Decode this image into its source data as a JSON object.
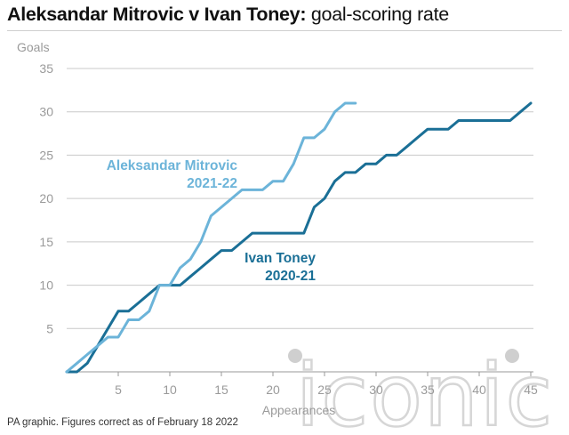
{
  "header": {
    "title_bold": "Aleksandar Mitrovic v Ivan Toney:",
    "title_rest": " goal-scoring rate"
  },
  "footer": {
    "source": "PA graphic. Figures correct as of February 18 2022"
  },
  "watermark": {
    "text": "iconic"
  },
  "colors": {
    "mitrovic": "#6cb4d9",
    "toney": "#1a6f96",
    "grid": "#c9c9c9",
    "axis_text": "#9a9a9a",
    "watermark": "#cfcfcf"
  },
  "chart_data": {
    "type": "line",
    "ylabel": "Goals",
    "xlabel": "Appearances",
    "xlim": [
      0,
      45
    ],
    "ylim": [
      0,
      35
    ],
    "x_ticks": [
      5,
      10,
      15,
      20,
      25,
      30,
      35,
      40,
      45
    ],
    "y_ticks": [
      5,
      10,
      15,
      20,
      25,
      30,
      35
    ],
    "grid": true,
    "series": [
      {
        "name": "Aleksandar Mitrovic",
        "label_lines": [
          "Aleksandar Mitrovic",
          "2021-22"
        ],
        "x": [
          0,
          1,
          2,
          3,
          4,
          5,
          6,
          7,
          8,
          9,
          10,
          11,
          12,
          13,
          14,
          15,
          16,
          17,
          18,
          19,
          20,
          21,
          22,
          23,
          24,
          25,
          26,
          27,
          28
        ],
        "y": [
          0,
          1,
          2,
          3,
          4,
          4,
          6,
          6,
          7,
          10,
          10,
          12,
          13,
          15,
          18,
          19,
          20,
          21,
          21,
          21,
          22,
          22,
          24,
          27,
          27,
          28,
          30,
          31,
          31
        ]
      },
      {
        "name": "Ivan Toney",
        "label_lines": [
          "Ivan Toney",
          "2020-21"
        ],
        "x": [
          0,
          1,
          2,
          3,
          4,
          5,
          6,
          7,
          8,
          9,
          10,
          11,
          12,
          13,
          14,
          15,
          16,
          17,
          18,
          19,
          20,
          21,
          22,
          23,
          24,
          25,
          26,
          27,
          28,
          29,
          30,
          31,
          32,
          33,
          34,
          35,
          36,
          37,
          38,
          39,
          40,
          41,
          42,
          43,
          44,
          45
        ],
        "y": [
          0,
          0,
          1,
          3,
          5,
          7,
          7,
          8,
          9,
          10,
          10,
          10,
          11,
          12,
          13,
          14,
          14,
          15,
          16,
          16,
          16,
          16,
          16,
          16,
          19,
          20,
          22,
          23,
          23,
          24,
          24,
          25,
          25,
          26,
          27,
          28,
          28,
          28,
          29,
          29,
          29,
          29,
          29,
          29,
          30,
          31
        ]
      }
    ]
  }
}
